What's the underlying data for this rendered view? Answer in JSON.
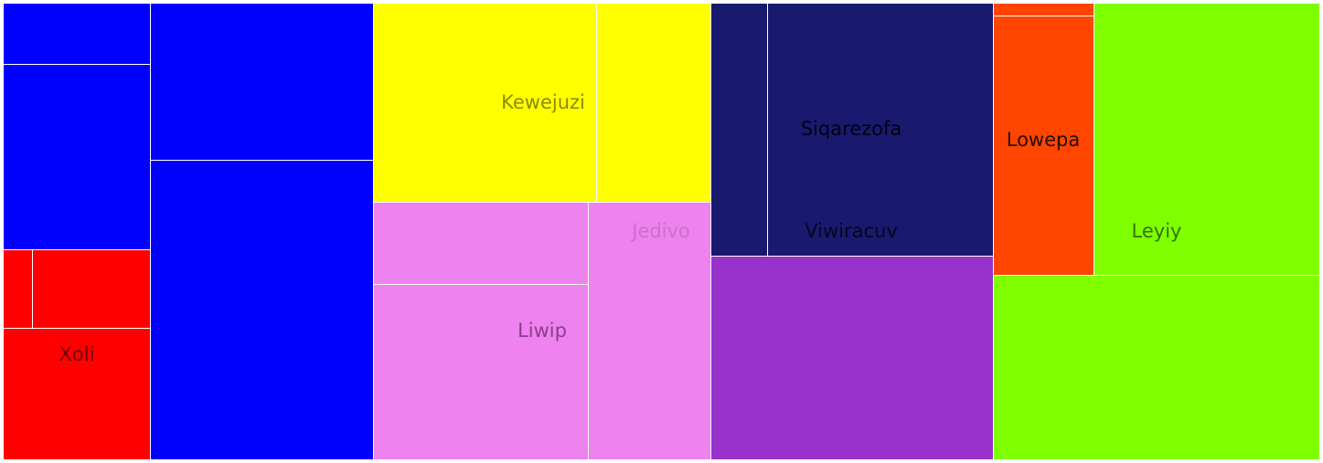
{
  "chart_data": {
    "type": "treemap",
    "colors": {
      "blue": "#0000ff",
      "red": "#ff0000",
      "yellow": "#ffff00",
      "violet": "#ee82ee",
      "navy": "#191970",
      "purple": "#9932cc",
      "orangered": "#ff4500",
      "chartreuse": "#7fff00",
      "white": "#ffffff"
    },
    "labels": {
      "xoli": "Xoli",
      "kewejuzi": "Kewejuzi",
      "liwip": "Liwip",
      "jedivo": "Jedivo",
      "siqarezofa": "Siqarezofa",
      "viwiracuv": "Viwiracuv",
      "lowepa": "Lowepa",
      "leyiy": "Leyiy"
    }
  }
}
